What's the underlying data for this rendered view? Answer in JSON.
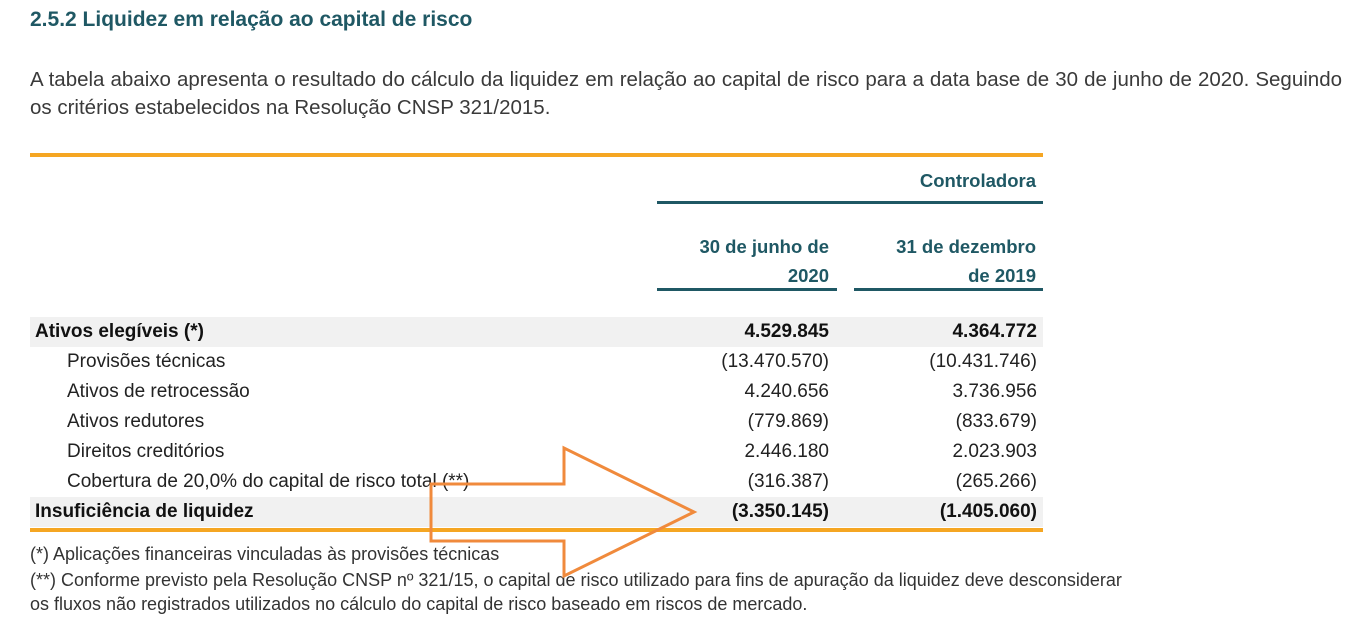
{
  "heading": "2.5.2 Liquidez em relação ao capital de risco",
  "intro": "A tabela abaixo apresenta o resultado do cálculo da liquidez em relação ao capital de risco para a data base de 30 de junho de 2020. Seguindo os critérios estabelecidos na Resolução CNSP 321/2015.",
  "table": {
    "group_header": "Controladora",
    "col1_line1": "30 de junho de",
    "col1_line2": "2020",
    "col2_line1": "31 de dezembro",
    "col2_line2": "de 2019",
    "rows": [
      {
        "label": "Ativos elegíveis (*)",
        "v1": "4.529.845",
        "v2": "4.364.772"
      },
      {
        "label": "Provisões técnicas",
        "v1": "(13.470.570)",
        "v2": "(10.431.746)"
      },
      {
        "label": "Ativos de retrocessão",
        "v1": "4.240.656",
        "v2": "3.736.956"
      },
      {
        "label": "Ativos redutores",
        "v1": "(779.869)",
        "v2": "(833.679)"
      },
      {
        "label": "Direitos creditórios",
        "v1": "2.446.180",
        "v2": "2.023.903"
      },
      {
        "label": "Cobertura de 20,0% do capital de risco total (**)",
        "v1": "(316.387)",
        "v2": "(265.266)"
      },
      {
        "label": "Insuficiência de liquidez",
        "v1": "(3.350.145)",
        "v2": "(1.405.060)"
      }
    ]
  },
  "footnotes": {
    "note1": "(*) Aplicações financeiras vinculadas às provisões técnicas",
    "note2_line1": "(**) Conforme previsto pela Resolução CNSP nº 321/15, o capital de risco utilizado para fins de apuração da liquidez deve desconsiderar",
    "note2_line2": "os fluxos não registrados utilizados no cálculo do capital de risco baseado em riscos de mercado."
  },
  "colors": {
    "heading": "#1f5864",
    "accent_rule": "#f5a623",
    "header_rule": "#1f5864",
    "arrow": "#f08a3c"
  },
  "annotation": {
    "shape": "arrow-right"
  }
}
